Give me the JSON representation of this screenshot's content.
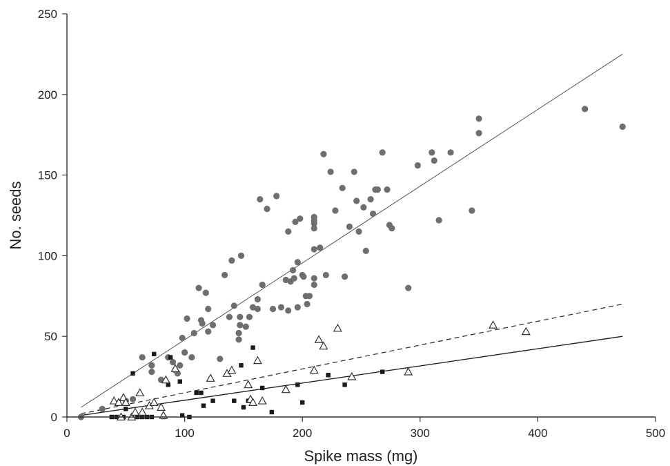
{
  "chart_data": {
    "type": "scatter",
    "title": "",
    "xlabel": "Spike mass (mg)",
    "ylabel": "No. seeds",
    "xlim": [
      0,
      500
    ],
    "ylim": [
      0,
      250
    ],
    "xticks": [
      0,
      100,
      200,
      300,
      400,
      500
    ],
    "yticks": [
      0,
      50,
      100,
      150,
      200,
      250
    ],
    "grid": false,
    "legend": "none",
    "series": [
      {
        "marker": "gray-circle",
        "color": "#6e6e6e",
        "points": [
          [
            12,
            0
          ],
          [
            30,
            5
          ],
          [
            50,
            10
          ],
          [
            56,
            11
          ],
          [
            64,
            37
          ],
          [
            72,
            32
          ],
          [
            72,
            28
          ],
          [
            80,
            23
          ],
          [
            86,
            37
          ],
          [
            90,
            34
          ],
          [
            92,
            29
          ],
          [
            94,
            27
          ],
          [
            96,
            32
          ],
          [
            98,
            49
          ],
          [
            100,
            40
          ],
          [
            102,
            61
          ],
          [
            106,
            37
          ],
          [
            108,
            52
          ],
          [
            112,
            80
          ],
          [
            114,
            60
          ],
          [
            115,
            58
          ],
          [
            118,
            77
          ],
          [
            120,
            67
          ],
          [
            120,
            53
          ],
          [
            124,
            57
          ],
          [
            130,
            36
          ],
          [
            134,
            88
          ],
          [
            138,
            62
          ],
          [
            140,
            97
          ],
          [
            142,
            69
          ],
          [
            146,
            48
          ],
          [
            146,
            52
          ],
          [
            147,
            57
          ],
          [
            147,
            62
          ],
          [
            148,
            100
          ],
          [
            152,
            56
          ],
          [
            155,
            62
          ],
          [
            158,
            68
          ],
          [
            162,
            73
          ],
          [
            162,
            67
          ],
          [
            164,
            135
          ],
          [
            166,
            82
          ],
          [
            170,
            129
          ],
          [
            175,
            67
          ],
          [
            178,
            137
          ],
          [
            182,
            68
          ],
          [
            186,
            85
          ],
          [
            188,
            115
          ],
          [
            188,
            66
          ],
          [
            190,
            84
          ],
          [
            192,
            91
          ],
          [
            193,
            86
          ],
          [
            194,
            121
          ],
          [
            196,
            68
          ],
          [
            196,
            96
          ],
          [
            198,
            123
          ],
          [
            200,
            88
          ],
          [
            201,
            87
          ],
          [
            203,
            75
          ],
          [
            204,
            70
          ],
          [
            206,
            75
          ],
          [
            210,
            122
          ],
          [
            210,
            124
          ],
          [
            210,
            120
          ],
          [
            210,
            117
          ],
          [
            210,
            104
          ],
          [
            210,
            86
          ],
          [
            210,
            82
          ],
          [
            215,
            105
          ],
          [
            218,
            163
          ],
          [
            220,
            88
          ],
          [
            224,
            152
          ],
          [
            228,
            128
          ],
          [
            234,
            142
          ],
          [
            236,
            87
          ],
          [
            240,
            118
          ],
          [
            244,
            152
          ],
          [
            246,
            134
          ],
          [
            248,
            115
          ],
          [
            252,
            130
          ],
          [
            254,
            103
          ],
          [
            258,
            135
          ],
          [
            260,
            126
          ],
          [
            262,
            141
          ],
          [
            264,
            141
          ],
          [
            268,
            164
          ],
          [
            272,
            141
          ],
          [
            274,
            119
          ],
          [
            276,
            117
          ],
          [
            290,
            80
          ],
          [
            298,
            156
          ],
          [
            310,
            164
          ],
          [
            312,
            159
          ],
          [
            316,
            122
          ],
          [
            326,
            164
          ],
          [
            344,
            128
          ],
          [
            350,
            185
          ],
          [
            350,
            176
          ],
          [
            440,
            191
          ],
          [
            472,
            180
          ]
        ]
      },
      {
        "marker": "black-square",
        "color": "#1a1a1a",
        "points": [
          [
            38,
            0
          ],
          [
            42,
            0
          ],
          [
            48,
            0
          ],
          [
            50,
            5
          ],
          [
            56,
            27
          ],
          [
            60,
            0
          ],
          [
            64,
            0
          ],
          [
            68,
            0
          ],
          [
            72,
            0
          ],
          [
            74,
            39
          ],
          [
            82,
            0
          ],
          [
            86,
            20
          ],
          [
            88,
            37
          ],
          [
            96,
            22
          ],
          [
            98,
            1
          ],
          [
            104,
            0
          ],
          [
            110,
            15
          ],
          [
            114,
            15
          ],
          [
            116,
            7
          ],
          [
            124,
            10
          ],
          [
            142,
            10
          ],
          [
            148,
            32
          ],
          [
            150,
            6
          ],
          [
            154,
            10
          ],
          [
            158,
            43
          ],
          [
            166,
            18
          ],
          [
            174,
            3
          ],
          [
            196,
            20
          ],
          [
            200,
            9
          ],
          [
            222,
            26
          ],
          [
            236,
            20
          ],
          [
            268,
            28
          ]
        ]
      },
      {
        "marker": "open-triangle",
        "color": "#333333",
        "points": [
          [
            40,
            10
          ],
          [
            44,
            9
          ],
          [
            46,
            0
          ],
          [
            48,
            12
          ],
          [
            50,
            9
          ],
          [
            55,
            0
          ],
          [
            58,
            3
          ],
          [
            62,
            15
          ],
          [
            64,
            3
          ],
          [
            70,
            7
          ],
          [
            74,
            9
          ],
          [
            80,
            6
          ],
          [
            82,
            1
          ],
          [
            84,
            23
          ],
          [
            92,
            30
          ],
          [
            122,
            24
          ],
          [
            136,
            27
          ],
          [
            140,
            29
          ],
          [
            154,
            20
          ],
          [
            156,
            11
          ],
          [
            158,
            9
          ],
          [
            162,
            35
          ],
          [
            166,
            10
          ],
          [
            186,
            17
          ],
          [
            210,
            29
          ],
          [
            214,
            48
          ],
          [
            218,
            44
          ],
          [
            230,
            55
          ],
          [
            242,
            25
          ],
          [
            290,
            28
          ],
          [
            362,
            57
          ],
          [
            390,
            53
          ]
        ]
      }
    ],
    "fits": [
      {
        "style": "solid-thin",
        "color": "#555555",
        "x": [
          12,
          472
        ],
        "y": [
          6,
          225
        ]
      },
      {
        "style": "dashed",
        "color": "#333333",
        "x": [
          12,
          472
        ],
        "y": [
          2,
          70
        ]
      },
      {
        "style": "solid",
        "color": "#222222",
        "x": [
          12,
          472
        ],
        "y": [
          1,
          50
        ]
      }
    ]
  }
}
